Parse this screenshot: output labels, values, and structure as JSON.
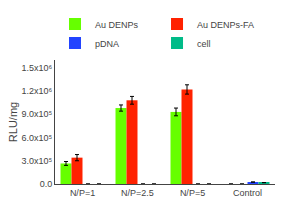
{
  "chart_data": {
    "type": "bar",
    "categories": [
      "N/P=1",
      "N/P=2.5",
      "N/P=5",
      "Control"
    ],
    "series": [
      {
        "name": "Au DENPs",
        "color": "#66ff00",
        "values": [
          265000,
          980000,
          930000,
          0.0
        ],
        "errors": [
          25000,
          40000,
          50000,
          0.0
        ]
      },
      {
        "name": "Au DENPs-FA",
        "color": "#ff2200",
        "values": [
          340000,
          1080000,
          1220000,
          0.0
        ],
        "errors": [
          40000,
          50000,
          60000,
          0.0
        ]
      },
      {
        "name": "pDNA",
        "color": "#2244ff",
        "values": [
          0.0,
          0.0,
          0.0,
          25000
        ],
        "errors": [
          0.0,
          0.0,
          0.0,
          0.0
        ]
      },
      {
        "name": "cell",
        "color": "#00bb88",
        "values": [
          0.0,
          0.0,
          0.0,
          18000
        ],
        "errors": [
          0.0,
          0.0,
          0.0,
          0.0
        ]
      }
    ],
    "ylabel": "RLU/mg",
    "ylim": [
      0,
      1600000
    ],
    "yticks": [
      {
        "value": 0,
        "label": "0.0"
      },
      {
        "value": 300000,
        "label": "3.0x10⁵"
      },
      {
        "value": 600000,
        "label": "6.0x10⁵"
      },
      {
        "value": 900000,
        "label": "9.0x10⁵"
      },
      {
        "value": 1200000,
        "label": "1.2x10⁶"
      },
      {
        "value": 1500000,
        "label": "1.5x10⁶"
      }
    ],
    "grid": false,
    "legend": "top"
  }
}
